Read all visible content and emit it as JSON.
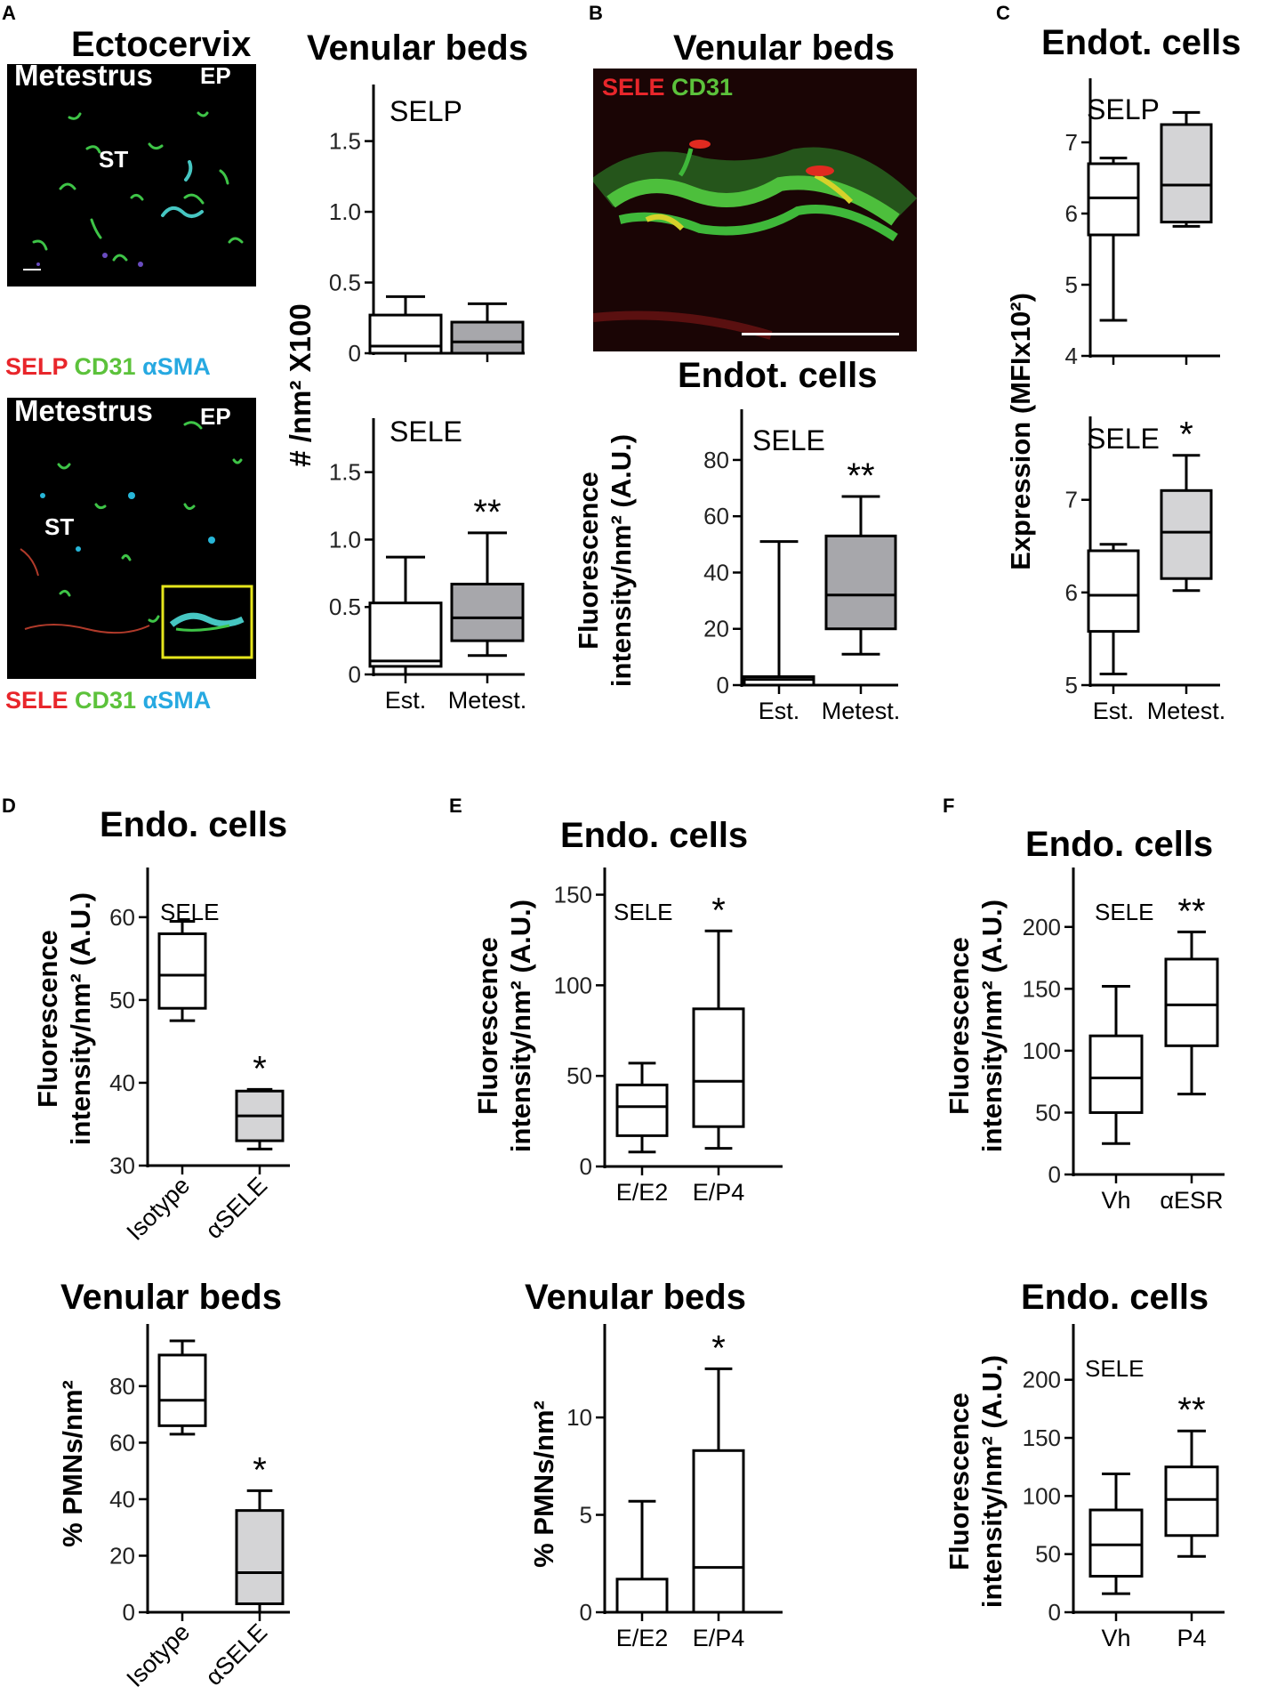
{
  "panels": {
    "A": {
      "letter": "A",
      "column_title": "Ectocervix",
      "micrographs": [
        {
          "phase": "Metestrus",
          "region_ep": "EP",
          "region_st": "ST",
          "stain": [
            "SELP",
            "CD31",
            "αSMA"
          ]
        },
        {
          "phase": "Metestrus",
          "region_ep": "EP",
          "region_st": "ST",
          "stain": [
            "SELE",
            "CD31",
            "αSMA"
          ]
        }
      ],
      "graph_title": "Venular beds",
      "shared_ylabel": "# /nm² X100"
    },
    "B": {
      "letter": "B",
      "title": "Venular beds",
      "stain": [
        "SELE",
        "CD31"
      ],
      "graph_title": "Endot. cells",
      "ylabel": [
        "Fluorescence",
        "intensity/nm² (A.U.)"
      ]
    },
    "C": {
      "letter": "C",
      "title": "Endot. cells",
      "shared_ylabel": "Expression (MFIx10²)"
    },
    "D": {
      "letter": "D",
      "title": "Endo. cells",
      "title2": "Venular beds",
      "ylabel": [
        "Fluorescence",
        "intensity/nm² (A.U.)"
      ],
      "ylabel2": "% PMNs/nm²"
    },
    "E": {
      "letter": "E",
      "title": "Endo. cells",
      "title2": "Venular beds",
      "ylabel": [
        "Fluorescence",
        "intensity/nm² (A.U.)"
      ],
      "ylabel2": "% PMNs/nm²"
    },
    "F": {
      "letter": "F",
      "title": "Endo. cells",
      "title2": "Endo. cells",
      "ylabel": [
        "Fluorescence",
        "intensity/nm² (A.U.)"
      ],
      "ylabel2": [
        "Fluorescence",
        "intensity/nm² (A.U.)"
      ]
    }
  },
  "colors": {
    "est_fill": "#ffffff",
    "met_fill_dark": "#a7a7ab",
    "met_fill_light": "#d4d4d6",
    "stain_red": "#e8262b",
    "stain_green": "#5cc23b",
    "stain_cyan": "#27a9e1"
  },
  "chart_data": [
    {
      "id": "A-SELP",
      "type": "box",
      "label": "SELP",
      "categories": [],
      "show_x": false,
      "ylim": [
        0,
        1.9
      ],
      "yticks": [
        "0",
        "0.5",
        "1.0",
        "1.5"
      ],
      "ytick_values": [
        0,
        0.5,
        1.0,
        1.5
      ],
      "boxes": [
        {
          "min": 0,
          "q1": 0,
          "median": 0.05,
          "q3": 0.27,
          "max": 0.4,
          "fill": "#ffffff"
        },
        {
          "min": 0,
          "q1": 0,
          "median": 0.08,
          "q3": 0.22,
          "max": 0.35,
          "fill": "#a7a7ab"
        }
      ],
      "sig": [
        "",
        ""
      ]
    },
    {
      "id": "A-SELE",
      "type": "box",
      "label": "SELE",
      "categories": [
        "Est.",
        "Metest."
      ],
      "show_x": true,
      "ylim": [
        0,
        1.9
      ],
      "yticks": [
        "0",
        "0.5",
        "1.0",
        "1.5"
      ],
      "ytick_values": [
        0,
        0.5,
        1.0,
        1.5
      ],
      "boxes": [
        {
          "min": 0,
          "q1": 0.06,
          "median": 0.1,
          "q3": 0.53,
          "max": 0.87,
          "fill": "#ffffff"
        },
        {
          "min": 0.14,
          "q1": 0.25,
          "median": 0.42,
          "q3": 0.67,
          "max": 1.05,
          "fill": "#a7a7ab"
        }
      ],
      "sig": [
        "",
        "**"
      ]
    },
    {
      "id": "B-SELE",
      "type": "box",
      "label": "SELE",
      "categories": [
        "Est.",
        "Metest."
      ],
      "show_x": true,
      "ylim": [
        0,
        98
      ],
      "yticks": [
        "0",
        "20",
        "40",
        "60",
        "80"
      ],
      "ytick_values": [
        0,
        20,
        40,
        60,
        80
      ],
      "boxes": [
        {
          "min": 0,
          "q1": 0,
          "median": 2,
          "q3": 3,
          "max": 51,
          "fill": "#ffffff"
        },
        {
          "min": 11,
          "q1": 20,
          "median": 32,
          "q3": 53,
          "max": 67,
          "fill": "#a7a7ab"
        }
      ],
      "sig": [
        "",
        "**"
      ]
    },
    {
      "id": "C-SELP",
      "type": "box",
      "label": "SELP",
      "categories": [],
      "show_x": false,
      "ylim": [
        4,
        7.9
      ],
      "yticks": [
        "4",
        "5",
        "6",
        "7"
      ],
      "ytick_values": [
        4,
        5,
        6,
        7
      ],
      "boxes": [
        {
          "min": 4.5,
          "q1": 5.7,
          "median": 6.22,
          "q3": 6.7,
          "max": 6.78,
          "fill": "#ffffff"
        },
        {
          "min": 5.82,
          "q1": 5.88,
          "median": 6.4,
          "q3": 7.25,
          "max": 7.42,
          "fill": "#d4d4d6"
        }
      ],
      "sig": [
        "",
        ""
      ]
    },
    {
      "id": "C-SELE",
      "type": "box",
      "label": "SELE",
      "categories": [
        "Est.",
        "Metest."
      ],
      "show_x": true,
      "ylim": [
        5,
        7.9
      ],
      "yticks": [
        "5",
        "6",
        "7"
      ],
      "ytick_values": [
        5,
        6,
        7
      ],
      "boxes": [
        {
          "min": 5.12,
          "q1": 5.58,
          "median": 5.97,
          "q3": 6.45,
          "max": 6.52,
          "fill": "#ffffff"
        },
        {
          "min": 6.02,
          "q1": 6.15,
          "median": 6.65,
          "q3": 7.1,
          "max": 7.48,
          "fill": "#d4d4d6"
        }
      ],
      "sig": [
        "",
        "*"
      ]
    },
    {
      "id": "D-SELE",
      "type": "box",
      "label": "SELE",
      "categories": [
        "Isotype",
        "αSELE"
      ],
      "show_x": true,
      "rotate": true,
      "ylim": [
        30,
        66
      ],
      "yticks": [
        "30",
        "40",
        "50",
        "60"
      ],
      "ytick_values": [
        30,
        40,
        50,
        60
      ],
      "boxes": [
        {
          "min": 47.5,
          "q1": 49,
          "median": 53,
          "q3": 58,
          "max": 59.5,
          "fill": "#ffffff"
        },
        {
          "min": 32,
          "q1": 33,
          "median": 36,
          "q3": 39,
          "max": 39.2,
          "fill": "#d4d4d6"
        }
      ],
      "sig": [
        "",
        "*"
      ]
    },
    {
      "id": "D-PMN",
      "type": "box",
      "label": "",
      "categories": [
        "Isotype",
        "αSELE"
      ],
      "show_x": true,
      "rotate": true,
      "ylim": [
        0,
        102
      ],
      "yticks": [
        "0",
        "20",
        "40",
        "60",
        "80"
      ],
      "ytick_values": [
        0,
        20,
        40,
        60,
        80
      ],
      "boxes": [
        {
          "min": 63,
          "q1": 66,
          "median": 75,
          "q3": 91,
          "max": 96,
          "fill": "#ffffff"
        },
        {
          "min": 0,
          "q1": 3,
          "median": 14,
          "q3": 36,
          "max": 43,
          "fill": "#d4d4d6"
        }
      ],
      "sig": [
        "",
        "*"
      ]
    },
    {
      "id": "E-SELE",
      "type": "box",
      "label": "SELE",
      "categories": [
        "E/E2",
        "E/P4"
      ],
      "show_x": true,
      "ylim": [
        0,
        165
      ],
      "yticks": [
        "0",
        "50",
        "100",
        "150"
      ],
      "ytick_values": [
        0,
        50,
        100,
        150
      ],
      "boxes": [
        {
          "min": 8,
          "q1": 17,
          "median": 33,
          "q3": 45,
          "max": 57,
          "fill": "#ffffff"
        },
        {
          "min": 10,
          "q1": 22,
          "median": 47,
          "q3": 87,
          "max": 130,
          "fill": "#ffffff"
        }
      ],
      "sig": [
        "",
        "*"
      ]
    },
    {
      "id": "E-PMN",
      "type": "box",
      "label": "",
      "categories": [
        "E/E2",
        "E/P4"
      ],
      "show_x": true,
      "ylim": [
        0,
        14.8
      ],
      "yticks": [
        "0",
        "5",
        "10"
      ],
      "ytick_values": [
        0,
        5,
        10
      ],
      "boxes": [
        {
          "min": 0,
          "q1": 0,
          "median": 0,
          "q3": 1.7,
          "max": 5.7,
          "fill": "#ffffff"
        },
        {
          "min": 0,
          "q1": 0,
          "median": 2.3,
          "q3": 8.3,
          "max": 12.5,
          "fill": "#ffffff"
        }
      ],
      "sig": [
        "",
        "*"
      ]
    },
    {
      "id": "F-SELE-ESR",
      "type": "box",
      "label": "SELE",
      "categories": [
        "Vh",
        "αESR"
      ],
      "show_x": true,
      "ylim": [
        0,
        248
      ],
      "yticks": [
        "0",
        "50",
        "100",
        "150",
        "200"
      ],
      "ytick_values": [
        0,
        50,
        100,
        150,
        200
      ],
      "boxes": [
        {
          "min": 25,
          "q1": 50,
          "median": 78,
          "q3": 112,
          "max": 152,
          "fill": "#ffffff"
        },
        {
          "min": 65,
          "q1": 104,
          "median": 137,
          "q3": 174,
          "max": 196,
          "fill": "#ffffff"
        }
      ],
      "sig": [
        "",
        "**"
      ]
    },
    {
      "id": "F-SELE-P4",
      "type": "box",
      "label": "SELE",
      "categories": [
        "Vh",
        "P4"
      ],
      "show_x": true,
      "ylim": [
        0,
        248
      ],
      "yticks": [
        "0",
        "50",
        "100",
        "150",
        "200"
      ],
      "ytick_values": [
        0,
        50,
        100,
        150,
        200
      ],
      "boxes": [
        {
          "min": 16,
          "q1": 31,
          "median": 58,
          "q3": 88,
          "max": 119,
          "fill": "#ffffff"
        },
        {
          "min": 48,
          "q1": 66,
          "median": 97,
          "q3": 125,
          "max": 156,
          "fill": "#ffffff"
        }
      ],
      "sig": [
        "",
        "**"
      ]
    }
  ]
}
